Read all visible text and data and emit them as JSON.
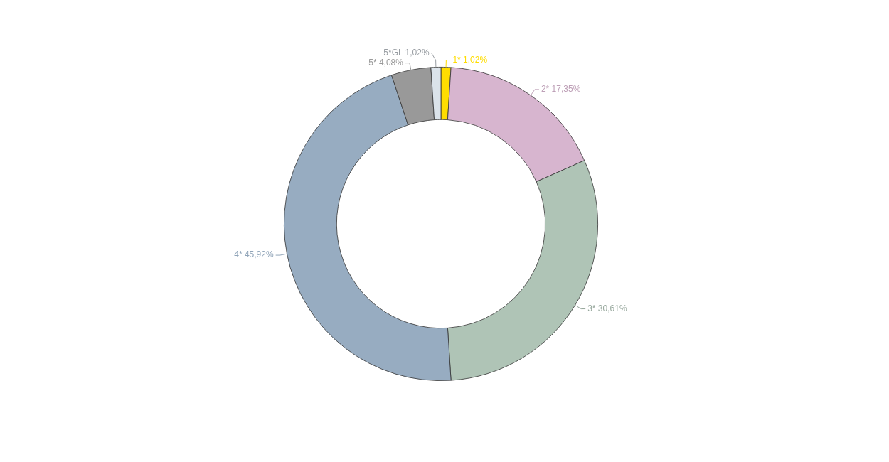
{
  "chart_data": {
    "type": "donut",
    "categories": [
      "1*",
      "2*",
      "3*",
      "4*",
      "5*",
      "5*GL"
    ],
    "values": [
      1.02,
      17.35,
      30.61,
      45.92,
      4.08,
      1.02
    ],
    "value_labels": [
      "1,02%",
      "17,35%",
      "30,61%",
      "45,92%",
      "4,08%",
      "1,02%"
    ],
    "colors": [
      "#ffdd00",
      "#d7b5cf",
      "#afc4b6",
      "#97acc1",
      "#999999",
      "#dbe3ea"
    ]
  }
}
